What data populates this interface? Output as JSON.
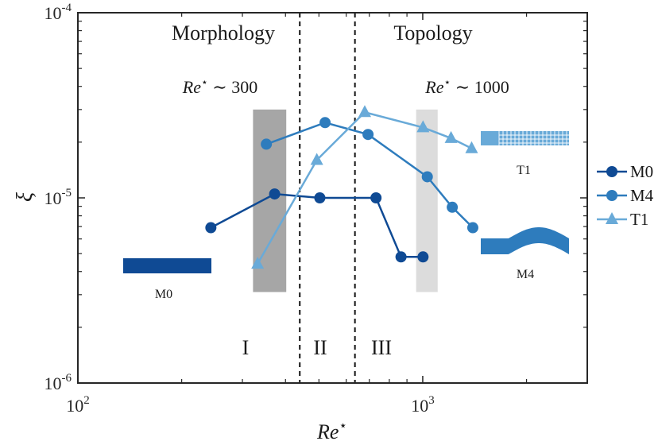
{
  "chart_data": {
    "type": "line",
    "xscale": "log",
    "yscale": "log",
    "xlim": [
      100,
      3000
    ],
    "ylim": [
      1e-06,
      0.0001
    ],
    "xlabel": "Re*",
    "ylabel": "ξ",
    "x_ticks": [
      {
        "value": 100,
        "base": "10",
        "exp": "2"
      },
      {
        "value": 1000,
        "base": "10",
        "exp": "3"
      }
    ],
    "y_ticks": [
      {
        "value": 1e-06,
        "base": "10",
        "exp": "-6"
      },
      {
        "value": 1e-05,
        "base": "10",
        "exp": "-5"
      },
      {
        "value": 0.0001,
        "base": "10",
        "exp": "-4"
      }
    ],
    "series": [
      {
        "name": "M0",
        "color": "#0f4a94",
        "marker": "circle",
        "x": [
          243,
          372,
          503,
          732,
          865,
          1002
        ],
        "y": [
          6.9e-06,
          1.05e-05,
          1e-05,
          1e-05,
          4.8e-06,
          4.8e-06
        ]
      },
      {
        "name": "M4",
        "color": "#2e7cbd",
        "marker": "circle",
        "x": [
          352,
          521,
          694,
          1031,
          1218,
          1397
        ],
        "y": [
          1.95e-05,
          2.55e-05,
          2.2e-05,
          1.3e-05,
          8.9e-06,
          6.9e-06
        ]
      },
      {
        "name": "T1",
        "color": "#69aad8",
        "marker": "triangle",
        "x": [
          332,
          493,
          679,
          1002,
          1208,
          1386
        ],
        "y": [
          4.4e-06,
          1.6e-05,
          2.9e-05,
          2.4e-05,
          2.1e-05,
          1.85e-05
        ]
      }
    ],
    "vertical_lines": [
      440,
      636
    ],
    "shaded_bands": [
      {
        "x": [
          322,
          402
        ],
        "y": [
          3.1e-06,
          3e-05
        ],
        "color": "#a6a6a6"
      },
      {
        "x": [
          957,
          1105
        ],
        "y": [
          3.1e-06,
          3e-05
        ],
        "color": "#dcdcdc"
      }
    ],
    "region_labels": [
      "Morphology",
      "Topology",
      "I",
      "II",
      "III"
    ],
    "annotations": [
      {
        "prefix": "Re",
        "sup": "⋆",
        "suffix": " ∼ 300"
      },
      {
        "prefix": "Re",
        "sup": "⋆",
        "suffix": " ∼ 1000"
      }
    ],
    "glyph_labels": [
      "M0",
      "T1",
      "M4"
    ],
    "glyph_colors": {
      "M0": "#0f4a94",
      "T1": "#69aad8",
      "M4": "#2e7cbd"
    },
    "legend_position": "right"
  }
}
